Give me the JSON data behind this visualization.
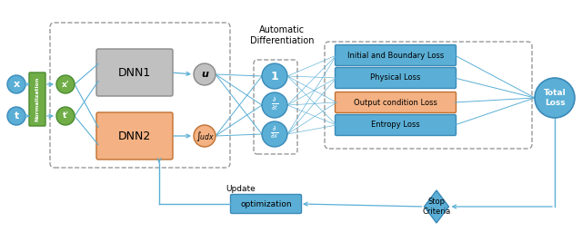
{
  "fig_width": 6.4,
  "fig_height": 2.56,
  "dpi": 100,
  "bg_color": "#ffffff",
  "blue_color": "#5bafd6",
  "green_color": "#70ad47",
  "gray_color": "#c0c0c0",
  "orange_color": "#f4b183",
  "line_color": "#5bafd6",
  "dash_color": "#999999",
  "norm_label": "Normalization",
  "dnn1_label": "DNN1",
  "dnn2_label": "DNN2",
  "u_label": "u",
  "int_label": "∫udx",
  "loss_labels": [
    "Initial and Boundary Loss",
    "Physical Loss",
    "Output condition Loss",
    "Entropy Loss"
  ],
  "loss_colors": [
    "blue",
    "blue",
    "orange",
    "blue"
  ],
  "total_label": "Total\nLoss",
  "opt_label": "optimization",
  "stop_label": "Stop\nCriteria",
  "update_label": "Update",
  "autodiff_title": "Automatic\nDifferentiation"
}
